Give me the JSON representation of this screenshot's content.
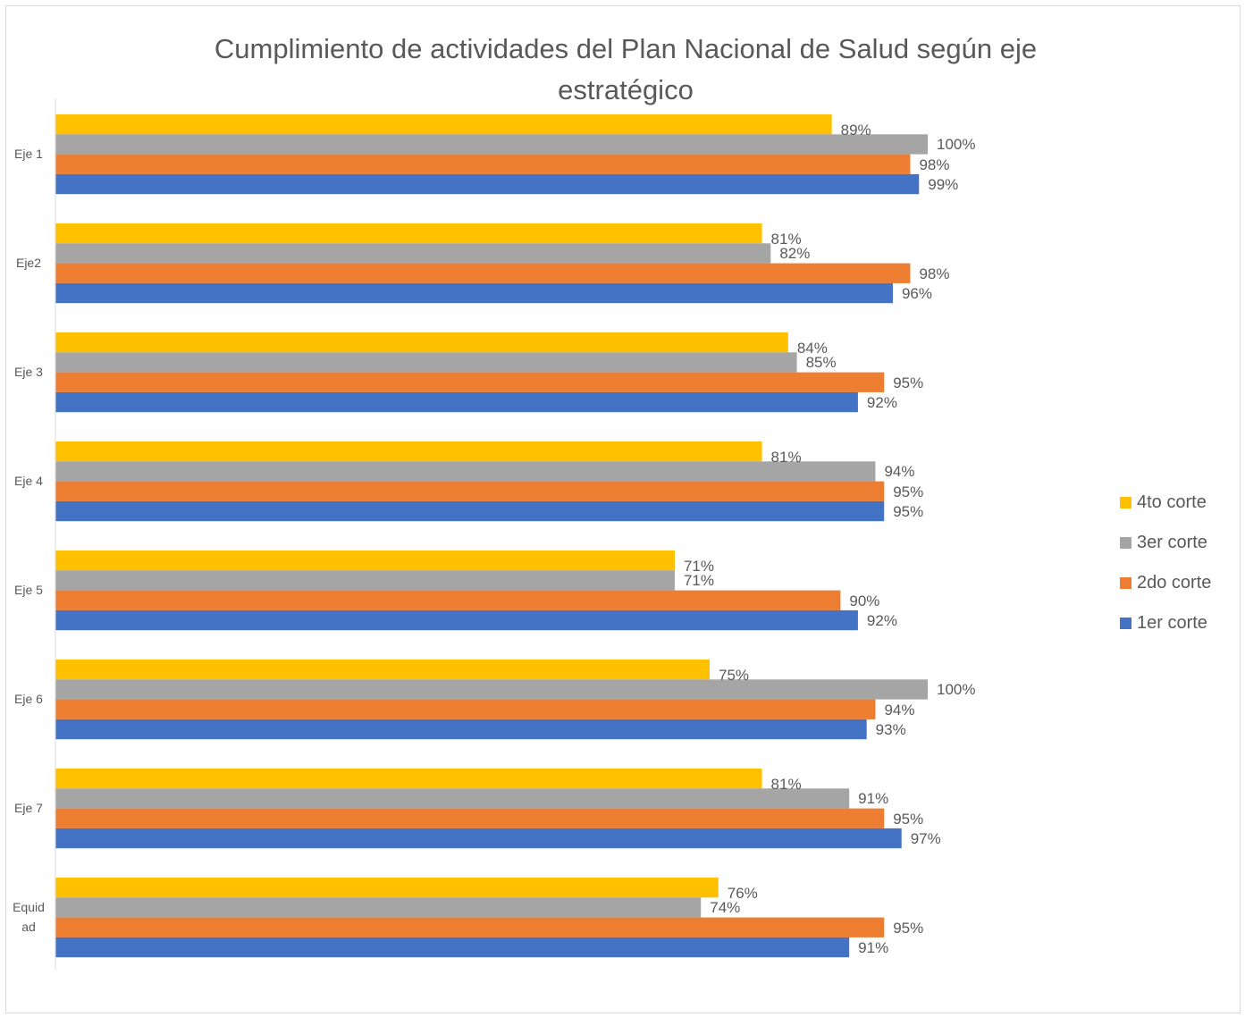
{
  "chart_data": {
    "type": "barh",
    "title": "Cumplimiento de actividades del Plan Nacional de Salud según eje estratégico",
    "categories": [
      "Eje 1",
      "Eje2",
      "Eje 3",
      "Eje 4",
      "Eje 5",
      "Eje 6",
      "Eje 7",
      "Equidad"
    ],
    "xlim": [
      0,
      100
    ],
    "legend": "right",
    "series": [
      {
        "name": "4to corte",
        "color": "#FFC000",
        "values": [
          89,
          81,
          84,
          81,
          71,
          75,
          81,
          76
        ],
        "value_labels": [
          "89%",
          "81%",
          "84%",
          "81%",
          "71%",
          "75%",
          "81%",
          "76%"
        ]
      },
      {
        "name": "3er corte",
        "color": "#A5A5A5",
        "values": [
          100,
          82,
          85,
          94,
          71,
          100,
          91,
          74
        ],
        "value_labels": [
          "100%",
          "82%",
          "85%",
          "94%",
          "71%",
          "100%",
          "91%",
          "74%"
        ]
      },
      {
        "name": "2do corte",
        "color": "#ED7D31",
        "values": [
          98,
          98,
          95,
          95,
          90,
          94,
          95,
          95
        ],
        "value_labels": [
          "98%",
          "98%",
          "95%",
          "95%",
          "90%",
          "94%",
          "95%",
          "95%"
        ]
      },
      {
        "name": "1er corte",
        "color": "#4472C4",
        "values": [
          99,
          96,
          92,
          95,
          92,
          93,
          97,
          91
        ],
        "value_labels": [
          "99%",
          "96%",
          "92%",
          "95%",
          "92%",
          "93%",
          "97%",
          "91%"
        ]
      }
    ]
  }
}
